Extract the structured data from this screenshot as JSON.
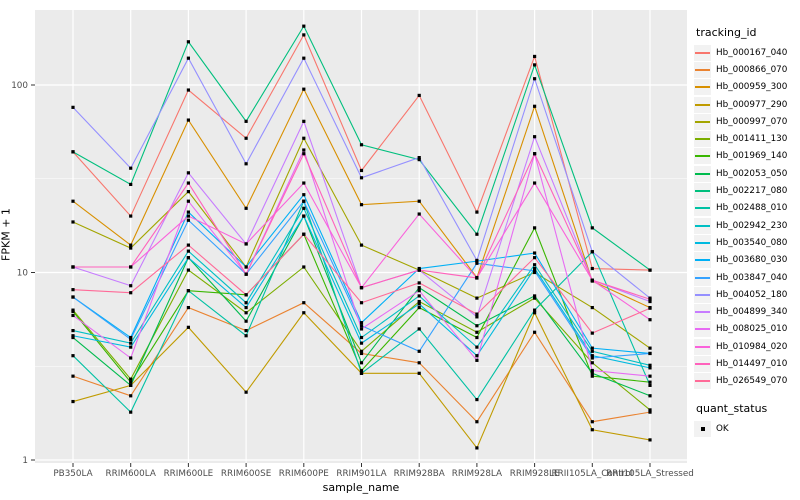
{
  "chart_data": {
    "type": "line",
    "xlabel": "sample_name",
    "ylabel": "FPKM + 1",
    "y_scale": "log10",
    "y_ticks": [
      "1",
      "10",
      "100"
    ],
    "ylim": [
      1,
      250
    ],
    "grid": "white major and minor gridlines on grey panel",
    "legend_position": "right",
    "legend_title": "tracking_id",
    "quant_legend": {
      "title": "quant_status",
      "entries": [
        "OK"
      ]
    },
    "marker": {
      "shape": "square",
      "color": "#000000",
      "size": 3.2
    },
    "categories": [
      "PB350LA",
      "RRIM600LA",
      "RRIM600LE",
      "RRIM600SE",
      "RRIM600PE",
      "RRIM901LA",
      "RRIM928BA",
      "RRIM928LA",
      "RRIM928LE",
      "RRII105LA_Control",
      "RRII105LA_Stressed"
    ],
    "series": [
      {
        "name": "Hb_000167_040",
        "color": "#F8766D",
        "values": [
          44,
          20,
          94,
          52,
          185,
          35,
          88,
          21,
          142,
          10.5,
          10.3
        ]
      },
      {
        "name": "Hb_000866_070",
        "color": "#EA8331",
        "values": [
          2.8,
          2.2,
          6.5,
          4.9,
          6.9,
          3.7,
          3.3,
          1.6,
          4.8,
          1.6,
          1.8
        ]
      },
      {
        "name": "Hb_000959_300",
        "color": "#D89000",
        "values": [
          24,
          14,
          65,
          22,
          95,
          23,
          24,
          9.4,
          77,
          9.0,
          6.5
        ]
      },
      {
        "name": "Hb_000977_290",
        "color": "#C09B00",
        "values": [
          2.05,
          2.5,
          5.1,
          2.3,
          6.1,
          2.9,
          2.9,
          1.16,
          6.1,
          1.45,
          1.28
        ]
      },
      {
        "name": "Hb_000997_070",
        "color": "#A3A500",
        "values": [
          18.6,
          13.5,
          27,
          10.7,
          52,
          14,
          10.3,
          7.3,
          10,
          6.5,
          3.95
        ]
      },
      {
        "name": "Hb_001411_130",
        "color": "#7CAE00",
        "values": [
          6.3,
          2.7,
          10.3,
          6.1,
          10.7,
          3.8,
          7.0,
          4.8,
          7.3,
          3.3,
          1.85
        ]
      },
      {
        "name": "Hb_001969_140",
        "color": "#39B600",
        "values": [
          6.2,
          2.6,
          8.0,
          7.6,
          16,
          3.0,
          6.5,
          4.5,
          17.3,
          2.8,
          2.6
        ]
      },
      {
        "name": "Hb_002053_050",
        "color": "#00BB4E",
        "values": [
          4.5,
          2.5,
          12,
          5.5,
          20,
          3.3,
          8.3,
          5.2,
          7.5,
          2.9,
          2.2
        ]
      },
      {
        "name": "Hb_002217_080",
        "color": "#00BF7D",
        "values": [
          44,
          29.5,
          170,
          64,
          206,
          48,
          40,
          16,
          128,
          17.3,
          10.3
        ]
      },
      {
        "name": "Hb_002488_010",
        "color": "#00C1A3",
        "values": [
          3.6,
          1.8,
          8.0,
          4.6,
          24,
          2.9,
          5.0,
          2.1,
          6.3,
          12.9,
          2.5
        ]
      },
      {
        "name": "Hb_002942_230",
        "color": "#00BFC4",
        "values": [
          4.9,
          4.2,
          13,
          6.9,
          22,
          4.5,
          7.5,
          4.0,
          11,
          3.8,
          3.2
        ]
      },
      {
        "name": "Hb_003540_080",
        "color": "#00BAE0",
        "values": [
          4.6,
          4.0,
          12,
          6.5,
          20,
          4.2,
          6.8,
          3.6,
          10.5,
          3.6,
          3.1
        ]
      },
      {
        "name": "Hb_003680_030",
        "color": "#00B0F6",
        "values": [
          7.4,
          4.5,
          21,
          10.7,
          26,
          5.4,
          10.5,
          11.5,
          12.7,
          3.95,
          3.7
        ]
      },
      {
        "name": "Hb_003847_040",
        "color": "#35A2FF",
        "values": [
          7.4,
          4.4,
          19,
          9.8,
          24,
          5.2,
          3.8,
          11.2,
          10.2,
          3.5,
          3.7
        ]
      },
      {
        "name": "Hb_004052_180",
        "color": "#9590FF",
        "values": [
          76,
          36,
          139,
          38,
          139,
          32,
          41,
          11.6,
          108,
          12.9,
          7.3
        ]
      },
      {
        "name": "Hb_004899_340",
        "color": "#C77CFF",
        "values": [
          10.7,
          8.5,
          34,
          14.2,
          64,
          8.3,
          10.3,
          5.8,
          53,
          9.1,
          7.0
        ]
      },
      {
        "name": "Hb_008025_010",
        "color": "#E76BF3",
        "values": [
          5.9,
          3.5,
          24,
          9.8,
          45,
          5.0,
          8.0,
          3.4,
          43,
          3.0,
          2.8
        ]
      },
      {
        "name": "Hb_010984_020",
        "color": "#FA62DB",
        "values": [
          10.7,
          10.7,
          20,
          14.2,
          30,
          8.3,
          20.5,
          9.35,
          30,
          9.1,
          5.6
        ]
      },
      {
        "name": "Hb_014497_010",
        "color": "#FF62BC",
        "values": [
          10.7,
          10.7,
          30,
          9.8,
          43,
          8.3,
          10.3,
          9.35,
          43,
          9.1,
          7.2
        ]
      },
      {
        "name": "Hb_026549_070",
        "color": "#FF6A98",
        "values": [
          8.1,
          7.8,
          14,
          7.6,
          16,
          6.9,
          8.8,
          6.0,
          12,
          4.75,
          6.45
        ]
      }
    ]
  },
  "panel": {
    "bg": "#EBEBEB",
    "grid_color": "#FFFFFF",
    "key_bg": "#F2F2F2",
    "tick_label_color": "#4D4D4D",
    "tick_color": "#333333"
  }
}
